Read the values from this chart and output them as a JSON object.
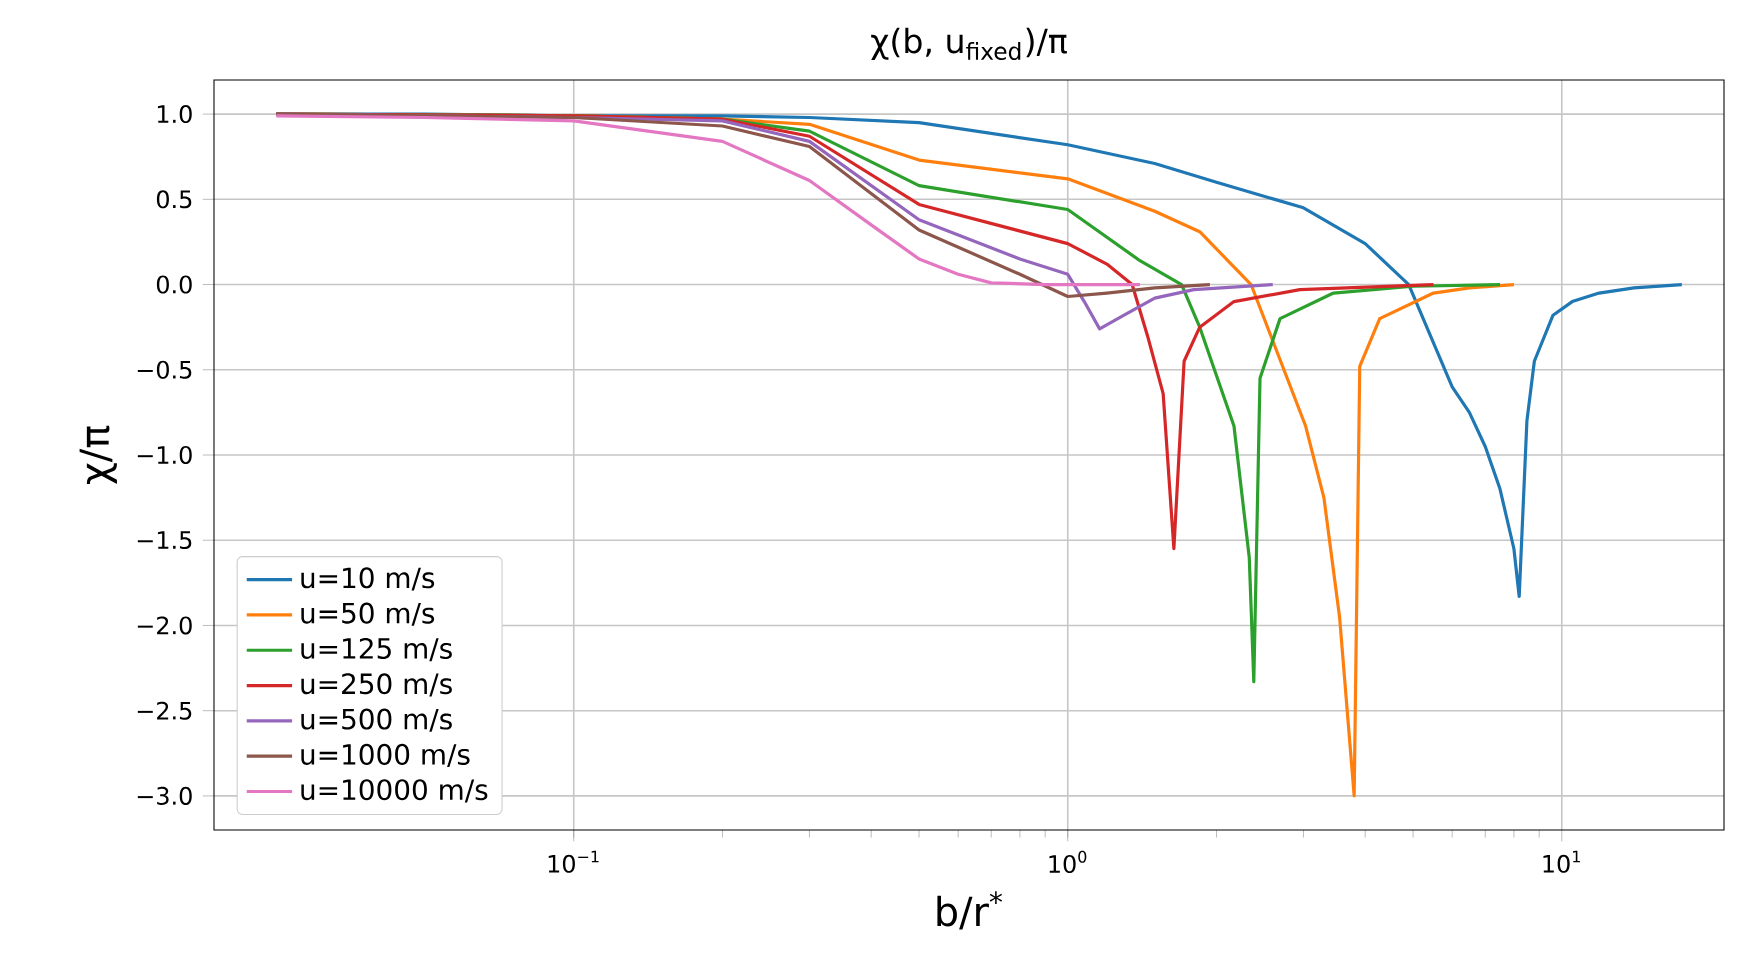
{
  "chart_data": {
    "type": "line",
    "title": "χ(b, u$_{fixed}$)/π",
    "xlabel": "b/r$^{*}$",
    "ylabel": "χ/π",
    "log": "x",
    "grid": true,
    "legend": "bottom left",
    "xlim": [
      0.0187,
      21.3
    ],
    "ylim": [
      -3.2,
      1.2
    ],
    "xticks": [
      {
        "value": 0.1,
        "label": "10$^{−1}$"
      },
      {
        "value": 1,
        "label": "10$^{0}$"
      },
      {
        "value": 10,
        "label": "10$^{1}$"
      }
    ],
    "yticks": [
      {
        "value": -3,
        "label": "−3.0"
      },
      {
        "value": -2.5,
        "label": "−2.5"
      },
      {
        "value": -2,
        "label": "−2.0"
      },
      {
        "value": -1.5,
        "label": "−1.5"
      },
      {
        "value": -1,
        "label": "−1.0"
      },
      {
        "value": -0.5,
        "label": "−0.5"
      },
      {
        "value": 0,
        "label": "0.0"
      },
      {
        "value": 0.5,
        "label": "0.5"
      },
      {
        "value": 1,
        "label": "1.0"
      }
    ],
    "series": [
      {
        "name": "u=10 m/s",
        "color": "#1f77b4",
        "x": [
          0.025,
          0.05,
          0.1,
          0.2,
          0.3,
          0.5,
          1,
          1.5,
          2,
          3,
          4,
          4.9,
          6,
          6.5,
          7,
          7.5,
          8,
          8.2,
          8.5,
          8.8,
          9.6,
          10.5,
          11.9,
          14,
          17.5
        ],
        "values": [
          1,
          1,
          0.99,
          0.99,
          0.98,
          0.95,
          0.82,
          0.71,
          0.6,
          0.45,
          0.24,
          0,
          -0.6,
          -0.75,
          -0.95,
          -1.2,
          -1.55,
          -1.83,
          -0.8,
          -0.45,
          -0.18,
          -0.1,
          -0.05,
          -0.02,
          0
        ]
      },
      {
        "name": "u=50 m/s",
        "color": "#ff7f0e",
        "x": [
          0.025,
          0.1,
          0.2,
          0.3,
          0.5,
          1,
          1.5,
          1.85,
          2.35,
          3.03,
          3.3,
          3.55,
          3.8,
          3.9,
          4.28,
          5.5,
          6.5,
          8.0
        ],
        "values": [
          1,
          0.99,
          0.97,
          0.94,
          0.73,
          0.62,
          0.43,
          0.31,
          0,
          -0.83,
          -1.25,
          -1.95,
          -3.0,
          -0.48,
          -0.2,
          -0.05,
          -0.02,
          0
        ]
      },
      {
        "name": "u=125 m/s",
        "color": "#2ca02c",
        "x": [
          0.025,
          0.1,
          0.2,
          0.3,
          0.5,
          1,
          1.4,
          1.7,
          1.85,
          2.17,
          2.33,
          2.38,
          2.45,
          2.69,
          3.45,
          5,
          7.5
        ],
        "values": [
          1,
          0.99,
          0.97,
          0.9,
          0.58,
          0.44,
          0.14,
          0,
          -0.25,
          -0.83,
          -1.6,
          -2.33,
          -0.55,
          -0.2,
          -0.05,
          -0.01,
          0
        ]
      },
      {
        "name": "u=250 m/s",
        "color": "#d62728",
        "x": [
          0.025,
          0.1,
          0.2,
          0.3,
          0.5,
          1,
          1.2,
          1.35,
          1.45,
          1.56,
          1.64,
          1.72,
          1.85,
          2.17,
          2.95,
          5.5
        ],
        "values": [
          1,
          0.99,
          0.97,
          0.87,
          0.47,
          0.24,
          0.12,
          0,
          -0.3,
          -0.64,
          -1.55,
          -0.45,
          -0.25,
          -0.1,
          -0.03,
          0
        ]
      },
      {
        "name": "u=500 m/s",
        "color": "#9467bd",
        "x": [
          0.025,
          0.1,
          0.2,
          0.3,
          0.5,
          0.8,
          1,
          1.08,
          1.16,
          1.3,
          1.5,
          1.8,
          2.6
        ],
        "values": [
          1,
          0.98,
          0.96,
          0.84,
          0.38,
          0.15,
          0.06,
          -0.1,
          -0.26,
          -0.18,
          -0.08,
          -0.03,
          0
        ]
      },
      {
        "name": "u=1000 m/s",
        "color": "#8c564b",
        "x": [
          0.025,
          0.1,
          0.2,
          0.3,
          0.5,
          0.8,
          1,
          1.2,
          1.5,
          1.94
        ],
        "values": [
          1,
          0.98,
          0.93,
          0.81,
          0.32,
          0.06,
          -0.07,
          -0.05,
          -0.02,
          0
        ]
      },
      {
        "name": "u=10000 m/s",
        "color": "#e377c2",
        "x": [
          0.025,
          0.05,
          0.1,
          0.2,
          0.3,
          0.4,
          0.5,
          0.6,
          0.7,
          0.9,
          1.4
        ],
        "values": [
          0.99,
          0.98,
          0.96,
          0.84,
          0.61,
          0.35,
          0.15,
          0.06,
          0.01,
          0,
          0
        ]
      }
    ]
  }
}
